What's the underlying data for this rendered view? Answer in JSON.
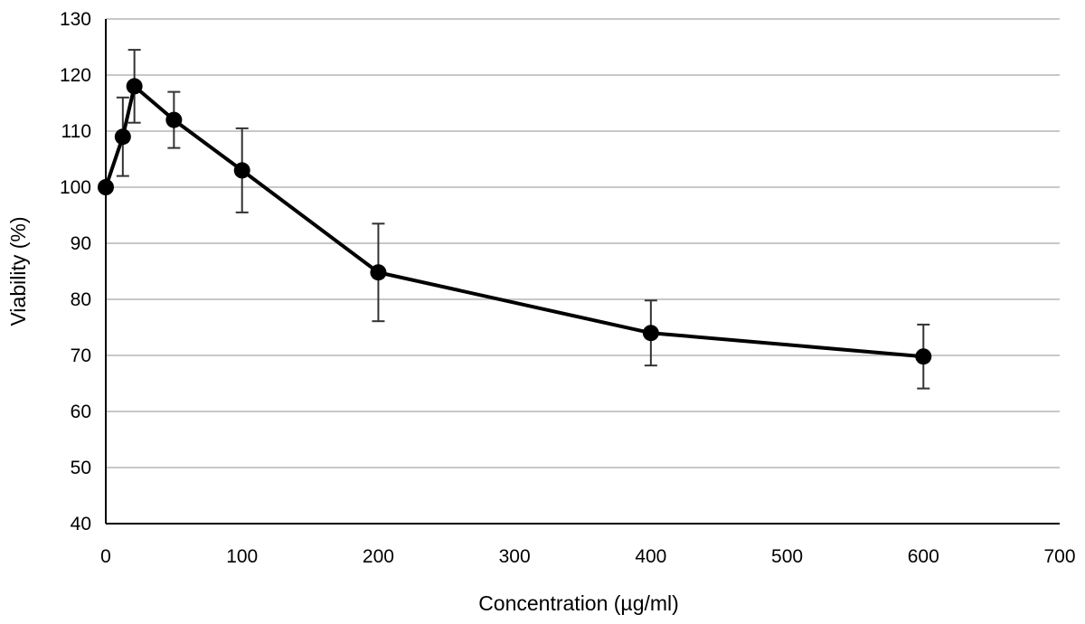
{
  "chart_data": {
    "type": "line",
    "title": "",
    "xlabel": "Concentration (µg/ml)",
    "ylabel": "Viability (%)",
    "xlim": [
      0,
      700
    ],
    "ylim": [
      40,
      130
    ],
    "x_ticks": [
      0,
      100,
      200,
      300,
      400,
      500,
      600,
      700
    ],
    "y_ticks": [
      40,
      50,
      60,
      70,
      80,
      90,
      100,
      110,
      120,
      130
    ],
    "grid": "horizontal",
    "legend": "none",
    "series": [
      {
        "color": "#000000",
        "marker": "circle",
        "points": [
          {
            "x": 0,
            "y": 100,
            "err": 0
          },
          {
            "x": 12.5,
            "y": 109,
            "err": 7
          },
          {
            "x": 21,
            "y": 118,
            "err": 6.5
          },
          {
            "x": 50,
            "y": 112,
            "err": 5
          },
          {
            "x": 100,
            "y": 103,
            "err": 7.5
          },
          {
            "x": 200,
            "y": 84.8,
            "err": 8.7
          },
          {
            "x": 400,
            "y": 74,
            "err": 5.8
          },
          {
            "x": 600,
            "y": 69.8,
            "err": 5.7
          }
        ]
      }
    ]
  },
  "colors": {
    "line": "#000000",
    "grid": "#c8c8c8",
    "axis": "#000000",
    "error_bar": "#333333"
  }
}
